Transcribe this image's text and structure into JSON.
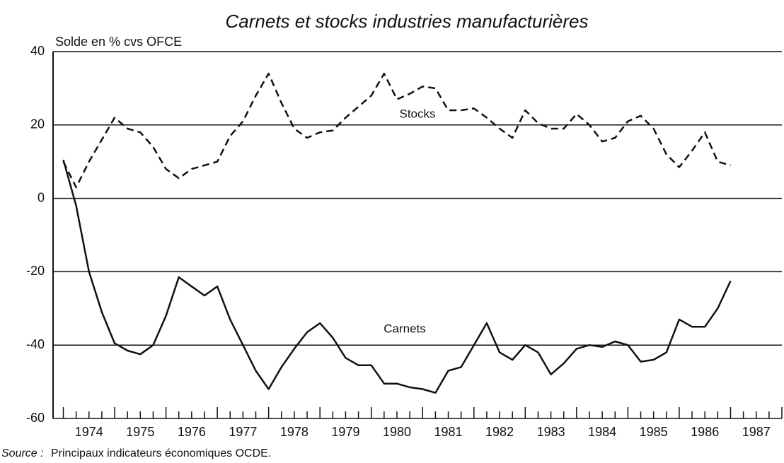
{
  "chart_data": {
    "type": "line",
    "title": "Carnets et stocks industries manufacturières",
    "y_label": "Solde en % cvs OFCE",
    "source_label": "Source :",
    "source": "Principaux indicateurs économiques OCDE.",
    "x": [
      1974,
      1974.25,
      1974.5,
      1974.75,
      1975,
      1975.25,
      1975.5,
      1975.75,
      1976,
      1976.25,
      1976.5,
      1976.75,
      1977,
      1977.25,
      1977.5,
      1977.75,
      1978,
      1978.25,
      1978.5,
      1978.75,
      1979,
      1979.25,
      1979.5,
      1979.75,
      1980,
      1980.25,
      1980.5,
      1980.75,
      1981,
      1981.25,
      1981.5,
      1981.75,
      1982,
      1982.25,
      1982.5,
      1982.75,
      1983,
      1983.25,
      1983.5,
      1983.75,
      1984,
      1984.25,
      1984.5,
      1984.75,
      1985,
      1985.25,
      1985.5,
      1985.75,
      1986,
      1986.25,
      1986.5,
      1986.75,
      1987
    ],
    "series": [
      {
        "name": "Stocks",
        "color": "#111111",
        "dash": true,
        "values": [
          10,
          3,
          10,
          16,
          22,
          19,
          18,
          14,
          8,
          5.5,
          8,
          9,
          10,
          17,
          21,
          28,
          34,
          26,
          19,
          16.5,
          18,
          18.5,
          22,
          25,
          28,
          34,
          27,
          28.5,
          30.5,
          30,
          24,
          24,
          24.5,
          22,
          19,
          16.5,
          24,
          20.5,
          19,
          19,
          23,
          20,
          15.5,
          16.5,
          21,
          22.5,
          19,
          12,
          8.5,
          13,
          18,
          10,
          9
        ]
      },
      {
        "name": "Carnets",
        "color": "#111111",
        "dash": false,
        "values": [
          10.5,
          -2,
          -20,
          -31,
          -39.5,
          -41.5,
          -42.5,
          -40,
          -32,
          -21.5,
          -24,
          -26.5,
          -24,
          -33,
          -40,
          -47,
          -52,
          -46,
          -41,
          -36.5,
          -34,
          -38,
          -43.5,
          -45.5,
          -45.5,
          -50.5,
          -50.5,
          -51.5,
          -52,
          -53,
          -47,
          -46,
          -40,
          -34,
          -42,
          -44,
          -40,
          -42,
          -48,
          -45,
          -41,
          -40,
          -40.5,
          -39,
          -40,
          -44.5,
          -44,
          -42,
          -33,
          -35,
          -35,
          -30,
          -22.5
        ]
      }
    ],
    "xlim": [
      1973.8,
      1988
    ],
    "xticks": [
      {
        "value": 1974.5,
        "label": "1974"
      },
      {
        "value": 1975.5,
        "label": "1975"
      },
      {
        "value": 1976.5,
        "label": "1976"
      },
      {
        "value": 1977.5,
        "label": "1977"
      },
      {
        "value": 1978.5,
        "label": "1978"
      },
      {
        "value": 1979.5,
        "label": "1979"
      },
      {
        "value": 1980.5,
        "label": "1980"
      },
      {
        "value": 1981.5,
        "label": "1981"
      },
      {
        "value": 1982.5,
        "label": "1982"
      },
      {
        "value": 1983.5,
        "label": "1983"
      },
      {
        "value": 1984.5,
        "label": "1984"
      },
      {
        "value": 1985.5,
        "label": "1985"
      },
      {
        "value": 1986.5,
        "label": "1986"
      },
      {
        "value": 1987.5,
        "label": "1987"
      }
    ],
    "ylim": [
      -60,
      40
    ],
    "yticks": [
      -60,
      -40,
      -20,
      0,
      20,
      40
    ],
    "grid": true
  }
}
